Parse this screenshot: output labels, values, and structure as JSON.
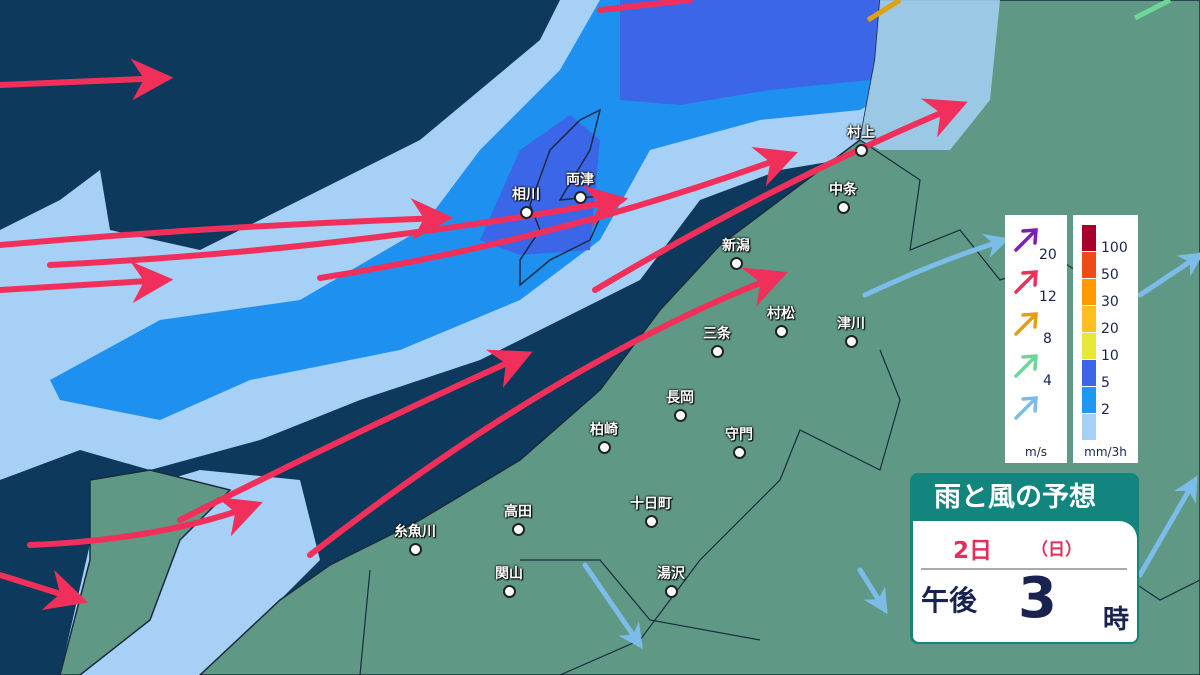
{
  "title": "雨と風の予想",
  "date": "2日",
  "day_of_week": "（日）",
  "ampm": "午後",
  "hour": "3",
  "hour_unit": "時",
  "colors": {
    "sea": "#0d3a5c",
    "land": "#5f9985",
    "rain_2": "#a6d0f5",
    "rain_5": "#1e90f0",
    "rain_10": "#3b66e8",
    "wind_12": "#f0305a",
    "wind_4": "#7bbde8"
  },
  "wind_legend": {
    "unit": "m/s",
    "items": [
      {
        "value": "20",
        "color": "#7b1fb0"
      },
      {
        "value": "12",
        "color": "#f0305a"
      },
      {
        "value": "8",
        "color": "#e0a010"
      },
      {
        "value": "4",
        "color": "#6fd69a"
      },
      {
        "value": "",
        "color": "#7bbde8"
      }
    ]
  },
  "rain_legend": {
    "unit": "mm/3h",
    "items": [
      {
        "value": "100",
        "color": "#a8002a"
      },
      {
        "value": "50",
        "color": "#ee4a1a"
      },
      {
        "value": "30",
        "color": "#ff9a00"
      },
      {
        "value": "20",
        "color": "#ffbf20"
      },
      {
        "value": "10",
        "color": "#e8e838"
      },
      {
        "value": "5",
        "color": "#3b66e8"
      },
      {
        "value": "2",
        "color": "#1e98f0"
      },
      {
        "value": "",
        "color": "#a6d0f5"
      }
    ]
  },
  "cities": [
    {
      "name": "村上"
    },
    {
      "name": "中条"
    },
    {
      "name": "新潟"
    },
    {
      "name": "両津"
    },
    {
      "name": "相川"
    },
    {
      "name": "村松"
    },
    {
      "name": "三条"
    },
    {
      "name": "津川"
    },
    {
      "name": "長岡"
    },
    {
      "name": "柏崎"
    },
    {
      "name": "守門"
    },
    {
      "name": "十日町"
    },
    {
      "name": "高田"
    },
    {
      "name": "糸魚川"
    },
    {
      "name": "関山"
    },
    {
      "name": "湯沢"
    }
  ]
}
